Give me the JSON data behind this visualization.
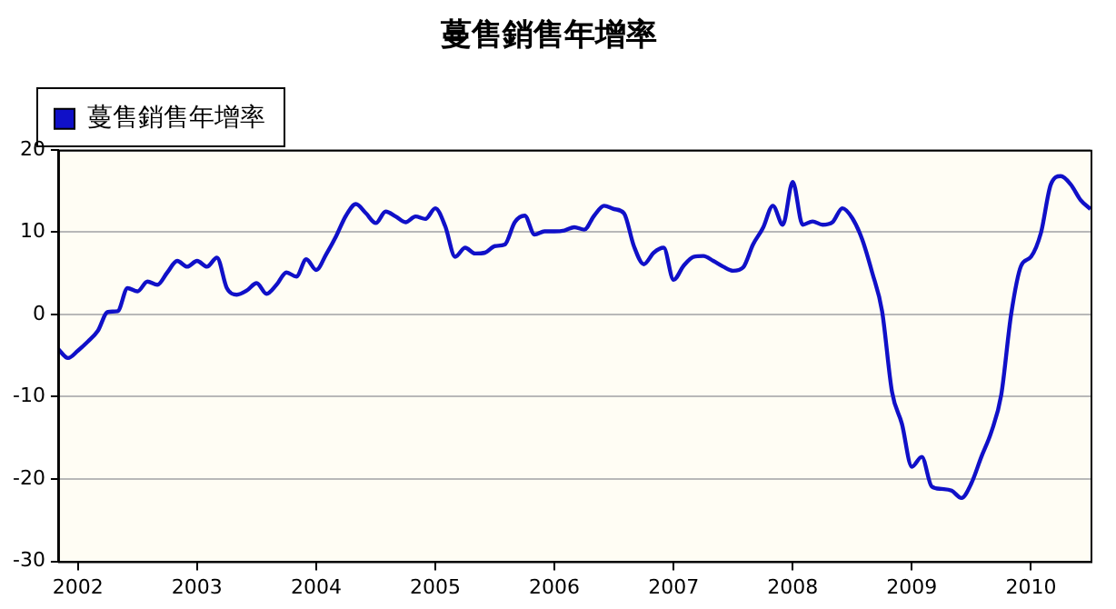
{
  "chart_data": {
    "type": "line",
    "title": "蔓售銷售年增率",
    "x": [
      "2001-11",
      "2001-12",
      "2002-01",
      "2002-02",
      "2002-03",
      "2002-04",
      "2002-05",
      "2002-06",
      "2002-07",
      "2002-08",
      "2002-09",
      "2002-10",
      "2002-11",
      "2002-12",
      "2003-01",
      "2003-02",
      "2003-03",
      "2003-04",
      "2003-05",
      "2003-06",
      "2003-07",
      "2003-08",
      "2003-09",
      "2003-10",
      "2003-11",
      "2003-12",
      "2004-01",
      "2004-02",
      "2004-03",
      "2004-04",
      "2004-05",
      "2004-06",
      "2004-07",
      "2004-08",
      "2004-09",
      "2004-10",
      "2004-11",
      "2004-12",
      "2005-01",
      "2005-02",
      "2005-03",
      "2005-04",
      "2005-05",
      "2005-06",
      "2005-07",
      "2005-08",
      "2005-09",
      "2005-10",
      "2005-11",
      "2005-12",
      "2006-01",
      "2006-02",
      "2006-03",
      "2006-04",
      "2006-05",
      "2006-06",
      "2006-07",
      "2006-08",
      "2006-09",
      "2006-10",
      "2006-11",
      "2006-12",
      "2007-01",
      "2007-02",
      "2007-03",
      "2007-04",
      "2007-05",
      "2007-06",
      "2007-07",
      "2007-08",
      "2007-09",
      "2007-10",
      "2007-11",
      "2007-12",
      "2008-01",
      "2008-02",
      "2008-03",
      "2008-04",
      "2008-05",
      "2008-06",
      "2008-07",
      "2008-08",
      "2008-09",
      "2008-10",
      "2008-11",
      "2008-12",
      "2009-01",
      "2009-02",
      "2009-03",
      "2009-04",
      "2009-05",
      "2009-06",
      "2009-07",
      "2009-08",
      "2009-09",
      "2009-10",
      "2009-11",
      "2009-12",
      "2010-01",
      "2010-02",
      "2010-03",
      "2010-04",
      "2010-05",
      "2010-06",
      "2010-07"
    ],
    "series": [
      {
        "name": "蔓售銷售年增率",
        "color": "#1010c8",
        "values": [
          -4.2,
          -5.3,
          -4.4,
          -3.3,
          -2,
          0.3,
          0.4,
          3.2,
          2.8,
          4,
          3.6,
          5.1,
          6.5,
          5.8,
          6.5,
          5.8,
          6.9,
          3.2,
          2.4,
          2.9,
          3.8,
          2.5,
          3.6,
          5.1,
          4.6,
          6.7,
          5.4,
          7.3,
          9.5,
          12,
          13.4,
          12.3,
          11.1,
          12.5,
          11.9,
          11.2,
          11.9,
          11.6,
          12.9,
          10.7,
          7,
          8.1,
          7.4,
          7.5,
          8.3,
          8.5,
          11.2,
          12,
          9.7,
          10.1,
          10.1,
          10.2,
          10.6,
          10.3,
          12,
          13.2,
          12.8,
          12.3,
          8.3,
          6.1,
          7.5,
          8.1,
          4.2,
          5.9,
          7,
          7.1,
          6.5,
          5.8,
          5.3,
          5.7,
          8.5,
          10.5,
          13.2,
          10.9,
          16.1,
          10.9,
          11.3,
          10.9,
          11.2,
          12.9,
          11.7,
          9.1,
          5.1,
          0.4,
          -9.4,
          -13.3,
          -18.5,
          -17.3,
          -20.9,
          -21.2,
          -21.4,
          -22.3,
          -20.5,
          -17.3,
          -14.3,
          -9.8,
          0,
          5.9,
          7,
          9.9,
          15.8,
          16.8,
          15.8,
          13.9,
          12.8
        ]
      }
    ],
    "xlim": [
      "2001-11",
      "2010-07"
    ],
    "xticks": [
      "2002",
      "2003",
      "2004",
      "2005",
      "2006",
      "2007",
      "2008",
      "2009",
      "2010"
    ],
    "ylim": [
      -30,
      20
    ],
    "yticks": [
      -30,
      -20,
      -10,
      0,
      10,
      20
    ],
    "grid": "y",
    "legend": "top left",
    "marker": "none",
    "line_style": "solid"
  }
}
